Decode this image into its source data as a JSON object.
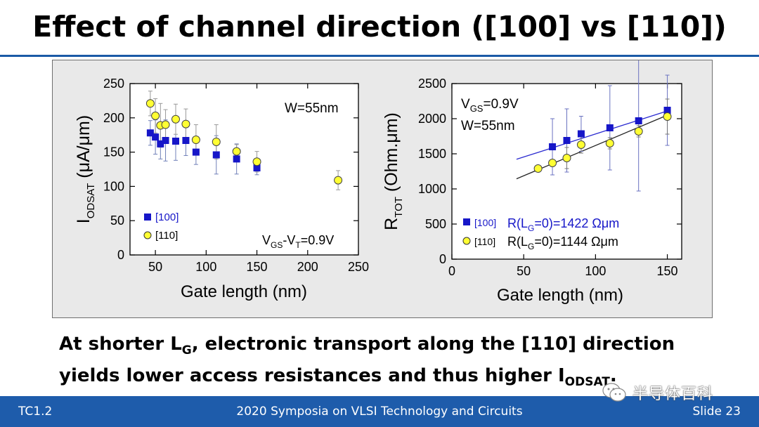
{
  "title": "Effect of channel direction ([100] vs [110])",
  "colors": {
    "accent": "#1e5cab",
    "series_100": "#1616c8",
    "series_110": "#ffff33",
    "fit_100": "#2a2ad0",
    "fit_110": "#222222"
  },
  "conclusion": {
    "l1_a": "At shorter L",
    "l1_sub": "G",
    "l1_b": ", electronic transport along the [110] direction",
    "l2_a": "yields lower access resistances and thus higher I",
    "l2_sub": "ODSAT",
    "l2_b": "."
  },
  "footer": {
    "left": "TC1.2",
    "center": "2020 Symposia on VLSI Technology and Circuits",
    "right": "Slide 23"
  },
  "watermark": {
    "text": "半导体百科",
    "icon": "wechat-icon"
  },
  "chart_data": [
    {
      "type": "scatter",
      "xlabel": "Gate length (nm)",
      "ylabel": {
        "main": "I",
        "sub": "ODSAT",
        "rest": " (μA/μm)"
      },
      "xlim": [
        25,
        250
      ],
      "ylim": [
        0,
        250
      ],
      "xticks": [
        "50",
        "100",
        "150",
        "200",
        "250"
      ],
      "yticks": [
        "0",
        "50",
        "100",
        "150",
        "200",
        "250"
      ],
      "annotations": {
        "width": "W=55nm",
        "bias": {
          "a": "V",
          "s1": "GS",
          "b": "-V",
          "s2": "T",
          "c": "=0.9V"
        }
      },
      "legend": [
        "[100]",
        "[110]"
      ],
      "series": [
        {
          "name": "[100]",
          "x": [
            45,
            50,
            55,
            60,
            70,
            80,
            90,
            110,
            130,
            150
          ],
          "y": [
            178,
            172,
            162,
            167,
            166,
            167,
            150,
            146,
            140,
            127
          ],
          "err": [
            18,
            25,
            22,
            30,
            28,
            22,
            18,
            28,
            22,
            10
          ]
        },
        {
          "name": "[110]",
          "x": [
            45,
            50,
            55,
            60,
            70,
            80,
            90,
            110,
            130,
            150,
            230
          ],
          "y": [
            221,
            203,
            189,
            190,
            198,
            191,
            168,
            165,
            151,
            136,
            109
          ],
          "err": [
            18,
            25,
            32,
            22,
            22,
            22,
            22,
            25,
            10,
            15,
            14
          ]
        }
      ]
    },
    {
      "type": "scatter",
      "xlabel": "Gate length (nm)",
      "ylabel": {
        "main": "R",
        "sub": "TOT",
        "rest": " (Ohm.μm)"
      },
      "xlim": [
        0,
        160
      ],
      "ylim": [
        0,
        2500
      ],
      "xticks": [
        "0",
        "50",
        "100",
        "150"
      ],
      "yticks": [
        "0",
        "500",
        "1000",
        "1500",
        "2000",
        "2500"
      ],
      "annotations": {
        "bias": {
          "a": "V",
          "s1": "GS",
          "b": "=0.9V"
        },
        "width": "W=55nm"
      },
      "legend": [
        {
          "tag": "[100]",
          "a": "R(L",
          "s": "G",
          "b": "=0)=1422 Ωμm"
        },
        {
          "tag": "[110]",
          "a": "R(L",
          "s": "G",
          "b": "=0)=1144 Ωμm"
        }
      ],
      "series": [
        {
          "name": "[100]",
          "x": [
            70,
            80,
            90,
            110,
            130,
            150
          ],
          "y": [
            1600,
            1690,
            1785,
            1870,
            1970,
            2120
          ],
          "err": [
            400,
            450,
            250,
            600,
            1000,
            500
          ]
        },
        {
          "name": "[110]",
          "x": [
            60,
            70,
            80,
            90,
            110,
            130,
            150
          ],
          "y": [
            1290,
            1370,
            1440,
            1630,
            1650,
            1820,
            2030
          ],
          "err": [
            30,
            40,
            150,
            120,
            80,
            80,
            250
          ]
        }
      ],
      "fits": [
        {
          "name": "[100]",
          "intercept": 1422,
          "x": [
            45,
            150
          ],
          "y": [
            1422,
            2110
          ]
        },
        {
          "name": "[110]",
          "intercept": 1144,
          "x": [
            45,
            150
          ],
          "y": [
            1144,
            2050
          ]
        }
      ]
    }
  ]
}
